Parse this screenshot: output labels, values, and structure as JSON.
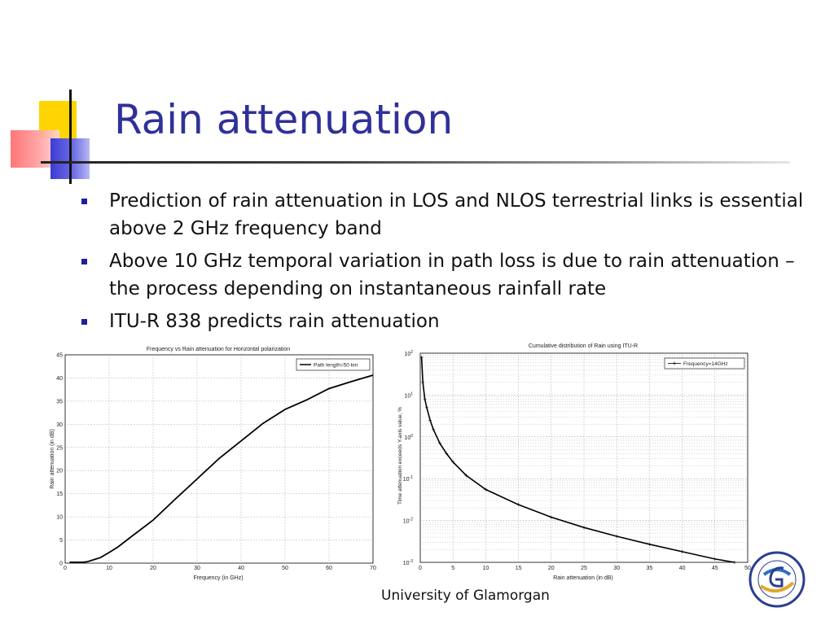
{
  "slide": {
    "title": "Rain attenuation",
    "bullets": [
      "Prediction of rain attenuation in LOS and NLOS terrestrial links is essential above 2 GHz frequency band",
      "Above 10 GHz temporal variation in path loss is due to rain attenuation – the process  depending on instantaneous rainfall rate",
      "ITU-R 838 predicts rain attenuation"
    ],
    "footer": "University of Glamorgan",
    "logo_icon": "university-seal-icon",
    "colors": {
      "title": "#30309a",
      "bullet": "#1f1f9a",
      "accent_yellow": "#ffd400",
      "accent_red": "#ff6a6a",
      "accent_blue": "#3b3bd4"
    }
  },
  "chart_data": [
    {
      "type": "line",
      "title": "Frequency vs Rain attenuation for Horizontal polarization",
      "xlabel": "Frequency (in GHz)",
      "ylabel": "Rain attenuation (in dB)",
      "xlim": [
        0,
        70
      ],
      "ylim": [
        0,
        45
      ],
      "xticks": [
        0,
        10,
        20,
        30,
        40,
        50,
        60,
        70
      ],
      "yticks": [
        0,
        5,
        10,
        15,
        20,
        25,
        30,
        35,
        40,
        45
      ],
      "grid": true,
      "legend": "top-right",
      "series": [
        {
          "name": "Path length=50 km",
          "x": [
            1,
            2,
            4,
            5,
            6,
            8,
            10,
            12,
            15,
            20,
            25,
            30,
            35,
            40,
            45,
            50,
            55,
            60,
            65,
            70
          ],
          "y": [
            0.2,
            0.2,
            0.2,
            0.3,
            0.6,
            1.2,
            2.3,
            3.5,
            5.7,
            9.3,
            13.8,
            18.2,
            22.6,
            26.4,
            30.2,
            33.2,
            35.3,
            37.7,
            39.2,
            40.6
          ]
        }
      ]
    },
    {
      "type": "line",
      "title": "Cumulative distribution of Rain using ITU-R",
      "xlabel": "Rain attenuation (in dB)",
      "ylabel": "Time attenuation exceeds Y-axis value, %",
      "xlim": [
        0,
        50
      ],
      "ylim": [
        0.001,
        100
      ],
      "yscale": "log",
      "xticks": [
        0,
        5,
        10,
        15,
        20,
        25,
        30,
        35,
        40,
        45,
        50
      ],
      "yticks": [
        "10^-3",
        "10^-2",
        "10^-1",
        "10^0",
        "10^1",
        "10^2"
      ],
      "grid": true,
      "legend": "top-right",
      "series": [
        {
          "name": "Frequency=14GHz",
          "x": [
            0.2,
            0.4,
            0.7,
            1,
            1.5,
            2,
            3,
            4,
            5,
            7,
            10,
            15,
            20,
            25,
            30,
            35,
            40,
            45,
            48
          ],
          "y": [
            80,
            20,
            8,
            5,
            2.5,
            1.5,
            0.7,
            0.4,
            0.25,
            0.12,
            0.055,
            0.024,
            0.012,
            0.0068,
            0.0042,
            0.0027,
            0.0018,
            0.0012,
            0.001
          ]
        }
      ]
    }
  ]
}
